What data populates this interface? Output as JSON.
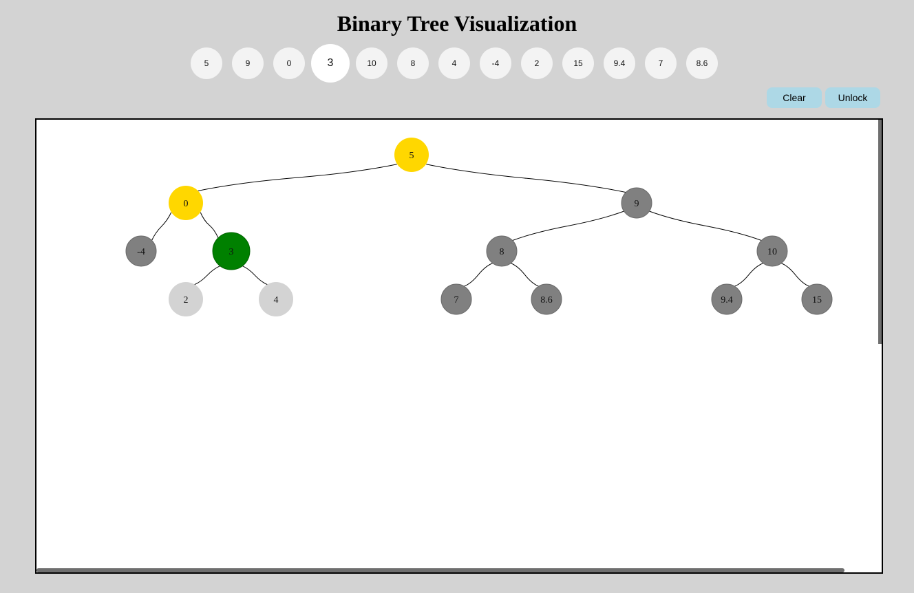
{
  "title": "Binary Tree Visualization",
  "values": [
    "5",
    "9",
    "0",
    "3",
    "10",
    "8",
    "4",
    "-4",
    "2",
    "15",
    "9.4",
    "7",
    "8.6"
  ],
  "selected_value": "3",
  "toolbar": {
    "clear_label": "Clear",
    "unlock_label": "Unlock",
    "button_color": "#add8e6"
  },
  "colors": {
    "path": "#ffd700",
    "current": "#008000",
    "default": "#808080",
    "dimmed": "#d3d3d3"
  },
  "tree": {
    "nodes": [
      {
        "id": "n5",
        "label": "5",
        "level": 0,
        "state": "path"
      },
      {
        "id": "n0",
        "label": "0",
        "level": 1,
        "state": "path"
      },
      {
        "id": "n9",
        "label": "9",
        "level": 1,
        "state": "default"
      },
      {
        "id": "nm4",
        "label": "-4",
        "level": 2,
        "state": "default"
      },
      {
        "id": "n3",
        "label": "3",
        "level": 2,
        "state": "current"
      },
      {
        "id": "n8",
        "label": "8",
        "level": 2,
        "state": "default"
      },
      {
        "id": "n10",
        "label": "10",
        "level": 2,
        "state": "default"
      },
      {
        "id": "n2",
        "label": "2",
        "level": 3,
        "state": "dimmed"
      },
      {
        "id": "n4",
        "label": "4",
        "level": 3,
        "state": "dimmed"
      },
      {
        "id": "n7",
        "label": "7",
        "level": 3,
        "state": "default"
      },
      {
        "id": "n86",
        "label": "8.6",
        "level": 3,
        "state": "default"
      },
      {
        "id": "n94",
        "label": "9.4",
        "level": 3,
        "state": "default"
      },
      {
        "id": "n15",
        "label": "15",
        "level": 3,
        "state": "default"
      }
    ],
    "edges": [
      [
        "n5",
        "n0"
      ],
      [
        "n5",
        "n9"
      ],
      [
        "n0",
        "nm4"
      ],
      [
        "n0",
        "n3"
      ],
      [
        "n9",
        "n8"
      ],
      [
        "n9",
        "n10"
      ],
      [
        "n3",
        "n2"
      ],
      [
        "n3",
        "n4"
      ],
      [
        "n8",
        "n7"
      ],
      [
        "n8",
        "n86"
      ],
      [
        "n10",
        "n94"
      ],
      [
        "n10",
        "n15"
      ]
    ]
  }
}
